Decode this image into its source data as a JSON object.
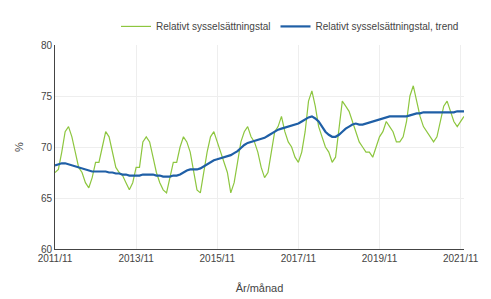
{
  "chart_data": {
    "type": "line",
    "xlabel": "År/månad",
    "ylabel": "%",
    "categories": [
      "2011/11",
      null,
      null,
      null,
      null,
      null,
      null,
      null,
      null,
      null,
      null,
      null,
      null,
      null,
      null,
      null,
      null,
      null,
      null,
      null,
      null,
      null,
      null,
      null,
      "2013/11",
      null,
      null,
      null,
      null,
      null,
      null,
      null,
      null,
      null,
      null,
      null,
      null,
      null,
      null,
      null,
      null,
      null,
      null,
      null,
      null,
      null,
      null,
      null,
      "2015/11",
      null,
      null,
      null,
      null,
      null,
      null,
      null,
      null,
      null,
      null,
      null,
      null,
      null,
      null,
      null,
      null,
      null,
      null,
      null,
      null,
      null,
      null,
      null,
      "2017/11",
      null,
      null,
      null,
      null,
      null,
      null,
      null,
      null,
      null,
      null,
      null,
      null,
      null,
      null,
      null,
      null,
      null,
      null,
      null,
      null,
      null,
      null,
      null,
      "2019/11",
      null,
      null,
      null,
      null,
      null,
      null,
      null,
      null,
      null,
      null,
      null,
      null,
      null,
      null,
      null,
      null,
      null,
      null,
      null,
      null,
      null,
      null,
      null,
      "2021/11",
      null
    ],
    "series": [
      {
        "name": "Relativt sysselsättningstal",
        "color": "#8dc63f",
        "values": [
          67.5,
          67.8,
          69.5,
          71.5,
          72.0,
          71.0,
          69.5,
          68.0,
          67.5,
          66.5,
          66.0,
          67.0,
          68.5,
          68.5,
          70.0,
          71.5,
          71.0,
          69.5,
          68.0,
          67.5,
          67.2,
          66.5,
          65.8,
          66.5,
          68.0,
          68.0,
          70.5,
          71.0,
          70.5,
          69.0,
          67.5,
          66.5,
          65.8,
          65.5,
          67.0,
          68.5,
          68.5,
          70.0,
          71.0,
          70.5,
          69.5,
          67.5,
          65.8,
          65.5,
          67.5,
          69.5,
          71.0,
          71.5,
          70.5,
          69.5,
          68.5,
          67.5,
          65.5,
          66.5,
          68.5,
          70.5,
          71.5,
          72.0,
          71.0,
          70.5,
          69.5,
          68.0,
          67.0,
          67.5,
          69.5,
          71.5,
          72.0,
          73.0,
          71.5,
          70.5,
          70.0,
          69.0,
          68.5,
          69.5,
          71.5,
          74.5,
          75.5,
          74.0,
          72.0,
          71.0,
          70.0,
          69.5,
          68.5,
          69.0,
          71.5,
          74.5,
          74.0,
          73.5,
          72.5,
          71.5,
          70.5,
          70.0,
          69.5,
          69.5,
          69.0,
          70.0,
          71.0,
          71.5,
          72.5,
          72.0,
          71.5,
          70.5,
          70.5,
          71.0,
          72.5,
          75.0,
          76.0,
          74.5,
          73.0,
          72.0,
          71.5,
          71.0,
          70.5,
          71.0,
          72.5,
          74.0,
          74.5,
          73.5,
          72.5,
          72.0,
          72.5,
          73.0
        ]
      },
      {
        "name": "Relativt sysselsättningstal, trend",
        "color": "#1f5fa6",
        "values": [
          68.2,
          68.3,
          68.4,
          68.4,
          68.3,
          68.2,
          68.1,
          68.0,
          67.9,
          67.8,
          67.7,
          67.6,
          67.6,
          67.6,
          67.6,
          67.6,
          67.5,
          67.5,
          67.4,
          67.4,
          67.3,
          67.3,
          67.2,
          67.2,
          67.2,
          67.2,
          67.3,
          67.3,
          67.3,
          67.3,
          67.2,
          67.2,
          67.1,
          67.1,
          67.1,
          67.2,
          67.2,
          67.3,
          67.5,
          67.7,
          67.8,
          67.8,
          67.8,
          67.9,
          68.1,
          68.3,
          68.5,
          68.7,
          68.8,
          68.9,
          69.0,
          69.1,
          69.2,
          69.4,
          69.6,
          69.9,
          70.2,
          70.4,
          70.5,
          70.6,
          70.7,
          70.8,
          70.9,
          71.1,
          71.3,
          71.5,
          71.7,
          71.8,
          71.9,
          72.0,
          72.1,
          72.2,
          72.3,
          72.5,
          72.7,
          72.9,
          73.0,
          72.8,
          72.5,
          72.0,
          71.5,
          71.2,
          71.0,
          71.0,
          71.2,
          71.5,
          71.8,
          72.0,
          72.2,
          72.3,
          72.2,
          72.2,
          72.3,
          72.4,
          72.5,
          72.6,
          72.7,
          72.8,
          72.9,
          73.0,
          73.0,
          73.0,
          73.0,
          73.0,
          73.0,
          73.1,
          73.2,
          73.3,
          73.3,
          73.4,
          73.4,
          73.4,
          73.4,
          73.4,
          73.4,
          73.4,
          73.4,
          73.4,
          73.4,
          73.5,
          73.5,
          73.5
        ]
      }
    ],
    "ylim": [
      60,
      80
    ],
    "yticks": [
      60,
      65,
      70,
      75,
      80
    ],
    "grid": true,
    "legend": "top"
  }
}
